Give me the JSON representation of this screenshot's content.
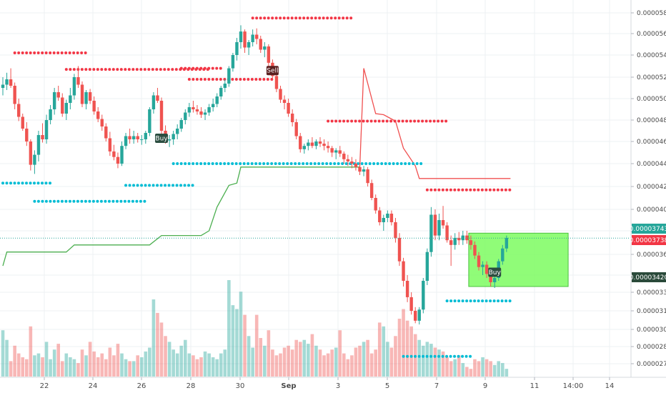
{
  "colors": {
    "up": "#26a69a",
    "down": "#ef5350",
    "vol_up": "#26a69a",
    "vol_down": "#ef5350",
    "dots_red": "#f23645",
    "dots_cyan": "#00bcd4",
    "green_line": "#4caf50",
    "red_line": "#f05050",
    "target_box": "#7cfc60",
    "tag_teal": "#26a69a",
    "tag_red": "#f23645",
    "tag_dark": "#2a4a3a",
    "signal_buy": "#2b4d40",
    "signal_sell": "#5a1f1f",
    "grid": "#eef0f3"
  },
  "chart_data": {
    "type": "candlestick",
    "y_ticks": [
      "0.00005800",
      "0.00005600",
      "0.00005400",
      "0.00005200",
      "0.00005000",
      "0.00004800",
      "0.00004600",
      "0.00004400",
      "0.00004200",
      "0.00004000",
      "0.00003800",
      "0.00003600",
      "0.00003420",
      "0.00003300",
      "0.00003150",
      "0.00003000",
      "0.00002860",
      "0.00002720"
    ],
    "y_tick_values": [
      5800,
      5600,
      5400,
      5200,
      5000,
      4800,
      4600,
      4400,
      4200,
      4000,
      3800,
      3600,
      3420,
      3300,
      3150,
      3000,
      2860,
      2720
    ],
    "x_ticks": [
      "22",
      "24",
      "26",
      "28",
      "30",
      "Sep",
      "3",
      "5",
      "7",
      "9",
      "11",
      "14:00",
      "14"
    ],
    "price_tags": [
      {
        "label": "0.00003743",
        "value": 3743,
        "kind": "teal"
      },
      {
        "label": "0.00003738",
        "value": 3738,
        "kind": "red"
      },
      {
        "label": "0.00003420",
        "value": 3420,
        "kind": "dark"
      }
    ],
    "signals": [
      {
        "label": "Buy",
        "type": "buy",
        "candle": 40,
        "value": 4630
      },
      {
        "label": "Sell",
        "type": "sell",
        "candle": 68,
        "value": 5260
      },
      {
        "label": "Buy",
        "type": "buy",
        "candle": 124,
        "value": 3445
      }
    ],
    "red_dot_levels": [
      {
        "from": 3,
        "to": 21,
        "value": 5420
      },
      {
        "from": 16,
        "to": 52,
        "value": 5270
      },
      {
        "from": 45,
        "to": 55,
        "value": 5280
      },
      {
        "from": 47,
        "to": 68,
        "value": 5180
      },
      {
        "from": 63,
        "to": 88,
        "value": 5750
      },
      {
        "from": 82,
        "to": 112,
        "value": 4790
      },
      {
        "from": 107,
        "to": 128,
        "value": 4170
      }
    ],
    "cyan_dot_levels": [
      {
        "from": 0,
        "to": 12,
        "value": 4230
      },
      {
        "from": 8,
        "to": 36,
        "value": 4070
      },
      {
        "from": 31,
        "to": 48,
        "value": 4210
      },
      {
        "from": 43,
        "to": 106,
        "value": 4400
      },
      {
        "from": 101,
        "to": 118,
        "value": 2780
      },
      {
        "from": 112,
        "to": 128,
        "value": 3230
      }
    ],
    "green_line": [
      [
        0,
        3500
      ],
      [
        1,
        3620
      ],
      [
        3,
        3620
      ],
      [
        16,
        3620
      ],
      [
        18,
        3680
      ],
      [
        20,
        3680
      ],
      [
        37,
        3680
      ],
      [
        40,
        3760
      ],
      [
        50,
        3760
      ],
      [
        52,
        3800
      ],
      [
        54,
        4020
      ],
      [
        57,
        4210
      ],
      [
        59,
        4230
      ],
      [
        60,
        4370
      ],
      [
        63,
        4370
      ],
      [
        90,
        4370
      ]
    ],
    "red_line": [
      [
        90,
        4370
      ],
      [
        91,
        5280
      ],
      [
        94,
        4860
      ],
      [
        96,
        4850
      ],
      [
        99,
        4790
      ],
      [
        101,
        4540
      ],
      [
        104,
        4380
      ],
      [
        105,
        4270
      ],
      [
        128,
        4270
      ]
    ],
    "target_box": {
      "from_candle": 118,
      "to_candle": 142,
      "top": 3780,
      "bottom": 3340
    },
    "last_price": 3738,
    "candles": [
      [
        5100,
        5200,
        5030,
        5130
      ],
      [
        5130,
        5240,
        5080,
        5180
      ],
      [
        5180,
        5280,
        5100,
        5120
      ],
      [
        5120,
        5150,
        4900,
        4950
      ],
      [
        4950,
        5000,
        4790,
        4830
      ],
      [
        4830,
        4860,
        4700,
        4720
      ],
      [
        4720,
        4780,
        4560,
        4600
      ],
      [
        4600,
        4620,
        4340,
        4390
      ],
      [
        4390,
        4520,
        4310,
        4480
      ],
      [
        4480,
        4700,
        4420,
        4660
      ],
      [
        4660,
        4770,
        4590,
        4620
      ],
      [
        4620,
        4850,
        4580,
        4800
      ],
      [
        4800,
        4940,
        4760,
        4900
      ],
      [
        4900,
        5100,
        4850,
        5060
      ],
      [
        5060,
        5120,
        4980,
        5010
      ],
      [
        5010,
        5050,
        4830,
        4860
      ],
      [
        4860,
        4990,
        4800,
        4960
      ],
      [
        4960,
        5100,
        4900,
        5030
      ],
      [
        5030,
        5230,
        4990,
        5200
      ],
      [
        5200,
        5300,
        5100,
        5130
      ],
      [
        5130,
        5160,
        4920,
        4950
      ],
      [
        4950,
        5080,
        4900,
        5060
      ],
      [
        5060,
        5090,
        4950,
        4980
      ],
      [
        4980,
        5020,
        4850,
        4880
      ],
      [
        4880,
        4920,
        4780,
        4810
      ],
      [
        4810,
        4850,
        4700,
        4740
      ],
      [
        4740,
        4770,
        4600,
        4630
      ],
      [
        4630,
        4690,
        4470,
        4510
      ],
      [
        4510,
        4570,
        4430,
        4460
      ],
      [
        4460,
        4500,
        4360,
        4400
      ],
      [
        4400,
        4600,
        4380,
        4560
      ],
      [
        4560,
        4680,
        4530,
        4650
      ],
      [
        4650,
        4720,
        4580,
        4620
      ],
      [
        4620,
        4700,
        4580,
        4650
      ],
      [
        4650,
        4680,
        4590,
        4620
      ],
      [
        4620,
        4660,
        4570,
        4620
      ],
      [
        4620,
        4700,
        4580,
        4680
      ],
      [
        4680,
        4920,
        4650,
        4900
      ],
      [
        4900,
        5060,
        4860,
        5030
      ],
      [
        5030,
        5100,
        4960,
        4980
      ],
      [
        4980,
        5010,
        4640,
        4700
      ],
      [
        4700,
        4750,
        4580,
        4610
      ],
      [
        4610,
        4660,
        4550,
        4620
      ],
      [
        4620,
        4700,
        4570,
        4670
      ],
      [
        4670,
        4760,
        4620,
        4720
      ],
      [
        4720,
        4820,
        4690,
        4800
      ],
      [
        4800,
        4900,
        4760,
        4870
      ],
      [
        4870,
        4960,
        4830,
        4920
      ],
      [
        4920,
        4980,
        4870,
        4900
      ],
      [
        4900,
        4940,
        4850,
        4880
      ],
      [
        4880,
        4920,
        4820,
        4850
      ],
      [
        4850,
        4900,
        4800,
        4870
      ],
      [
        4870,
        4950,
        4840,
        4920
      ],
      [
        4920,
        5000,
        4880,
        4950
      ],
      [
        4950,
        5050,
        4920,
        5020
      ],
      [
        5020,
        5120,
        4990,
        5100
      ],
      [
        5100,
        5180,
        5060,
        5140
      ],
      [
        5140,
        5300,
        5110,
        5280
      ],
      [
        5280,
        5420,
        5250,
        5400
      ],
      [
        5400,
        5560,
        5350,
        5520
      ],
      [
        5520,
        5680,
        5460,
        5620
      ],
      [
        5620,
        5640,
        5420,
        5470
      ],
      [
        5470,
        5540,
        5400,
        5520
      ],
      [
        5520,
        5640,
        5480,
        5590
      ],
      [
        5590,
        5650,
        5500,
        5550
      ],
      [
        5550,
        5580,
        5420,
        5450
      ],
      [
        5450,
        5520,
        5380,
        5480
      ],
      [
        5480,
        5500,
        5300,
        5330
      ],
      [
        5330,
        5360,
        5180,
        5210
      ],
      [
        5210,
        5240,
        5060,
        5090
      ],
      [
        5090,
        5120,
        4960,
        4990
      ],
      [
        4990,
        5030,
        4900,
        4960
      ],
      [
        4960,
        5000,
        4830,
        4860
      ],
      [
        4860,
        4900,
        4740,
        4780
      ],
      [
        4780,
        4810,
        4620,
        4650
      ],
      [
        4650,
        4680,
        4500,
        4530
      ],
      [
        4530,
        4580,
        4490,
        4560
      ],
      [
        4560,
        4620,
        4520,
        4590
      ],
      [
        4590,
        4640,
        4540,
        4560
      ],
      [
        4560,
        4620,
        4530,
        4600
      ],
      [
        4600,
        4640,
        4550,
        4580
      ],
      [
        4580,
        4620,
        4520,
        4560
      ],
      [
        4560,
        4600,
        4500,
        4540
      ],
      [
        4540,
        4560,
        4460,
        4500
      ],
      [
        4500,
        4540,
        4440,
        4520
      ],
      [
        4520,
        4560,
        4460,
        4490
      ],
      [
        4490,
        4510,
        4400,
        4440
      ],
      [
        4440,
        4480,
        4380,
        4420
      ],
      [
        4420,
        4460,
        4360,
        4400
      ],
      [
        4400,
        4440,
        4340,
        4370
      ],
      [
        4370,
        4410,
        4300,
        4330
      ],
      [
        4330,
        4380,
        4290,
        4350
      ],
      [
        4350,
        4370,
        4200,
        4230
      ],
      [
        4230,
        4260,
        4080,
        4100
      ],
      [
        4100,
        4130,
        3960,
        3990
      ],
      [
        3990,
        4020,
        3850,
        3880
      ],
      [
        3880,
        3950,
        3800,
        3920
      ],
      [
        3920,
        3990,
        3880,
        3960
      ],
      [
        3960,
        3990,
        3850,
        3880
      ],
      [
        3880,
        3920,
        3700,
        3740
      ],
      [
        3740,
        3780,
        3500,
        3540
      ],
      [
        3540,
        3570,
        3340,
        3380
      ],
      [
        3380,
        3420,
        3220,
        3260
      ],
      [
        3260,
        3300,
        3120,
        3150
      ],
      [
        3150,
        3180,
        3050,
        3070
      ],
      [
        3070,
        3180,
        3040,
        3160
      ],
      [
        3160,
        3400,
        3130,
        3380
      ],
      [
        3380,
        3650,
        3350,
        3620
      ],
      [
        3620,
        4020,
        3580,
        3950
      ],
      [
        3950,
        4000,
        3720,
        3760
      ],
      [
        3760,
        3960,
        3720,
        3900
      ],
      [
        3900,
        4030,
        3820,
        3850
      ],
      [
        3850,
        3880,
        3700,
        3720
      ],
      [
        3720,
        3760,
        3500,
        3680
      ],
      [
        3680,
        3780,
        3640,
        3740
      ],
      [
        3740,
        3790,
        3680,
        3720
      ],
      [
        3720,
        3800,
        3680,
        3760
      ],
      [
        3760,
        3800,
        3690,
        3720
      ],
      [
        3720,
        3760,
        3640,
        3680
      ],
      [
        3680,
        3710,
        3560,
        3590
      ],
      [
        3590,
        3620,
        3460,
        3490
      ],
      [
        3490,
        3540,
        3420,
        3510
      ],
      [
        3510,
        3540,
        3400,
        3430
      ],
      [
        3430,
        3460,
        3340,
        3370
      ],
      [
        3370,
        3420,
        3330,
        3400
      ],
      [
        3400,
        3560,
        3380,
        3540
      ],
      [
        3540,
        3680,
        3510,
        3650
      ],
      [
        3650,
        3760,
        3620,
        3740
      ]
    ],
    "volume": [
      120,
      95,
      40,
      80,
      60,
      50,
      45,
      130,
      55,
      60,
      50,
      90,
      45,
      70,
      85,
      40,
      60,
      50,
      45,
      35,
      70,
      55,
      90,
      65,
      50,
      60,
      45,
      75,
      55,
      85,
      60,
      45,
      40,
      40,
      55,
      50,
      65,
      75,
      200,
      165,
      140,
      105,
      90,
      70,
      60,
      80,
      95,
      60,
      55,
      45,
      50,
      65,
      60,
      50,
      45,
      60,
      70,
      250,
      185,
      175,
      220,
      160,
      105,
      75,
      160,
      100,
      80,
      120,
      70,
      55,
      60,
      75,
      80,
      70,
      95,
      90,
      95,
      85,
      110,
      80,
      70,
      55,
      60,
      70,
      75,
      120,
      60,
      45,
      55,
      75,
      80,
      90,
      95,
      60,
      70,
      140,
      130,
      90,
      75,
      105,
      150,
      175,
      145,
      130,
      110,
      95,
      80,
      90,
      85,
      75,
      70,
      65,
      50,
      40,
      45,
      55,
      35,
      25,
      20,
      45,
      40,
      50,
      45,
      40,
      30,
      40,
      35,
      20
    ]
  }
}
